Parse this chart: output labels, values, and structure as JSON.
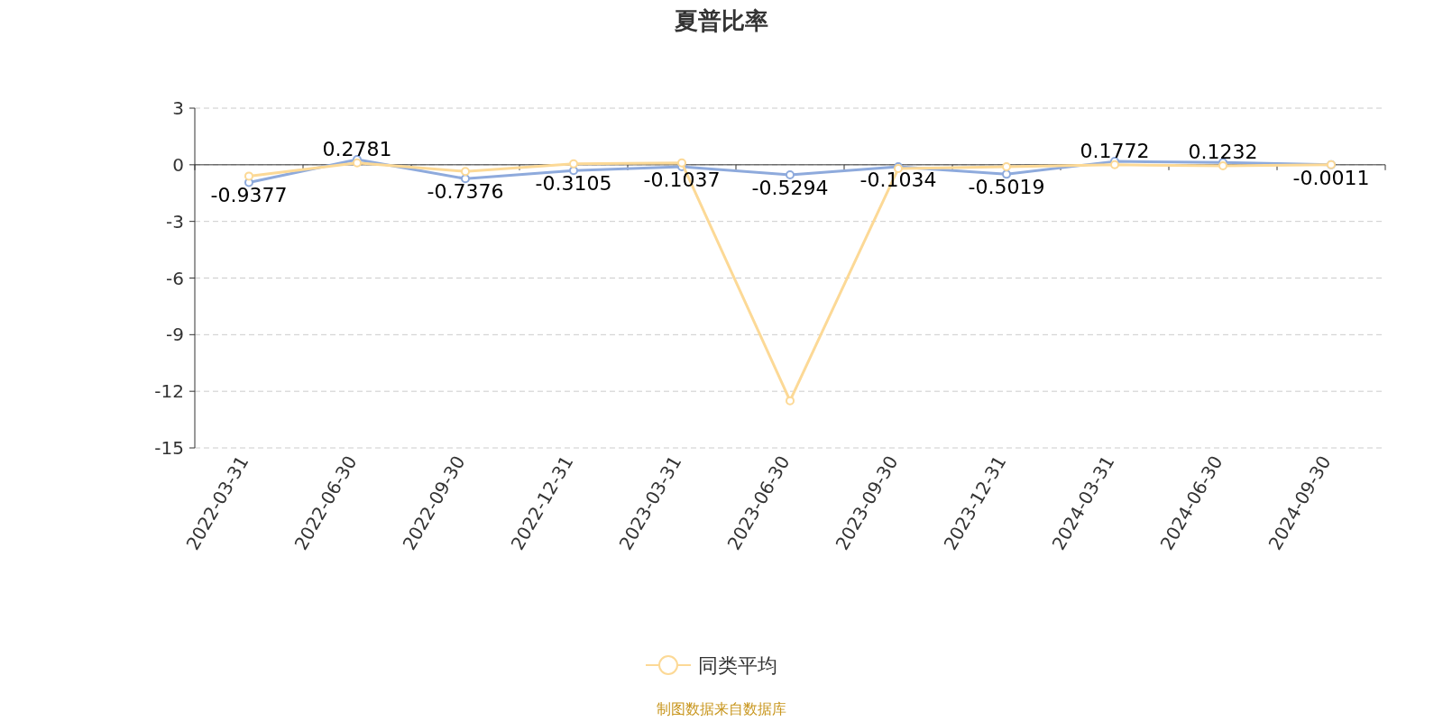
{
  "chart_data": {
    "type": "line",
    "title": "夏普比率",
    "categories": [
      "2022-03-31",
      "2022-06-30",
      "2022-09-30",
      "2022-12-31",
      "2023-03-31",
      "2023-06-30",
      "2023-09-30",
      "2023-12-31",
      "2024-03-31",
      "2024-06-30",
      "2024-09-30"
    ],
    "series": [
      {
        "color": "#8eaadc",
        "values": [
          -0.9377,
          0.2781,
          -0.7376,
          -0.3105,
          -0.1037,
          -0.5294,
          -0.1034,
          -0.5019,
          0.1772,
          0.1232,
          -0.0011
        ],
        "value_labels": [
          "-0.9377",
          "0.2781",
          "-0.7376",
          "-0.3105",
          "-0.1037",
          "-0.5294",
          "-0.1034",
          "-0.5019",
          "0.1772",
          "0.1232",
          "-0.0011"
        ]
      },
      {
        "name": "同类平均",
        "color": "#fcd996",
        "values": [
          -0.6,
          0.1,
          -0.35,
          0.05,
          0.1,
          -12.5,
          -0.2,
          -0.1,
          0.0,
          -0.05,
          0.0
        ]
      }
    ],
    "ylim": [
      -15,
      3
    ],
    "yticks": [
      -15,
      -12,
      -9,
      -6,
      -3,
      0,
      3
    ],
    "grid": "y",
    "marker": "circle",
    "legend": "bottom",
    "annotations": [
      "制图数据来自数据库"
    ]
  }
}
